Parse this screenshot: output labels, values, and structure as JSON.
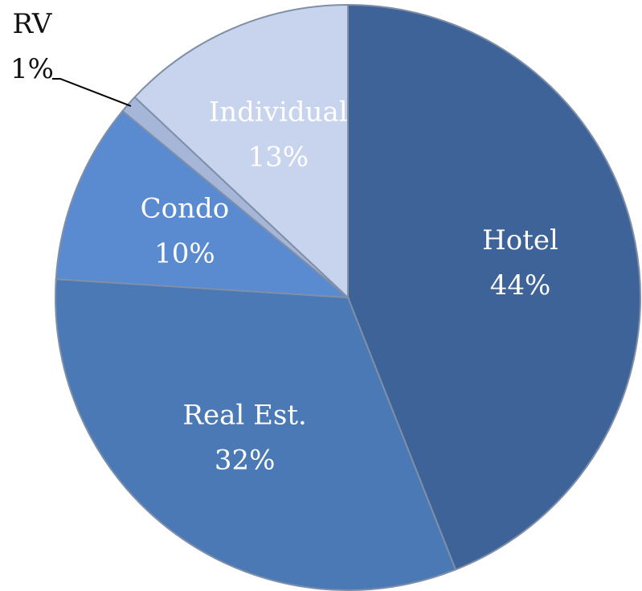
{
  "chart_data": {
    "type": "pie",
    "categories": [
      "Hotel",
      "Real Est.",
      "Condo",
      "RV",
      "Individual"
    ],
    "values": [
      44,
      32,
      10,
      1,
      13
    ],
    "value_labels": [
      "44%",
      "32%",
      "10%",
      "1%",
      "13%"
    ],
    "colors": [
      "#3e6399",
      "#4a79b5",
      "#5a8bd0",
      "#a6b6d8",
      "#c8d4ed"
    ]
  }
}
